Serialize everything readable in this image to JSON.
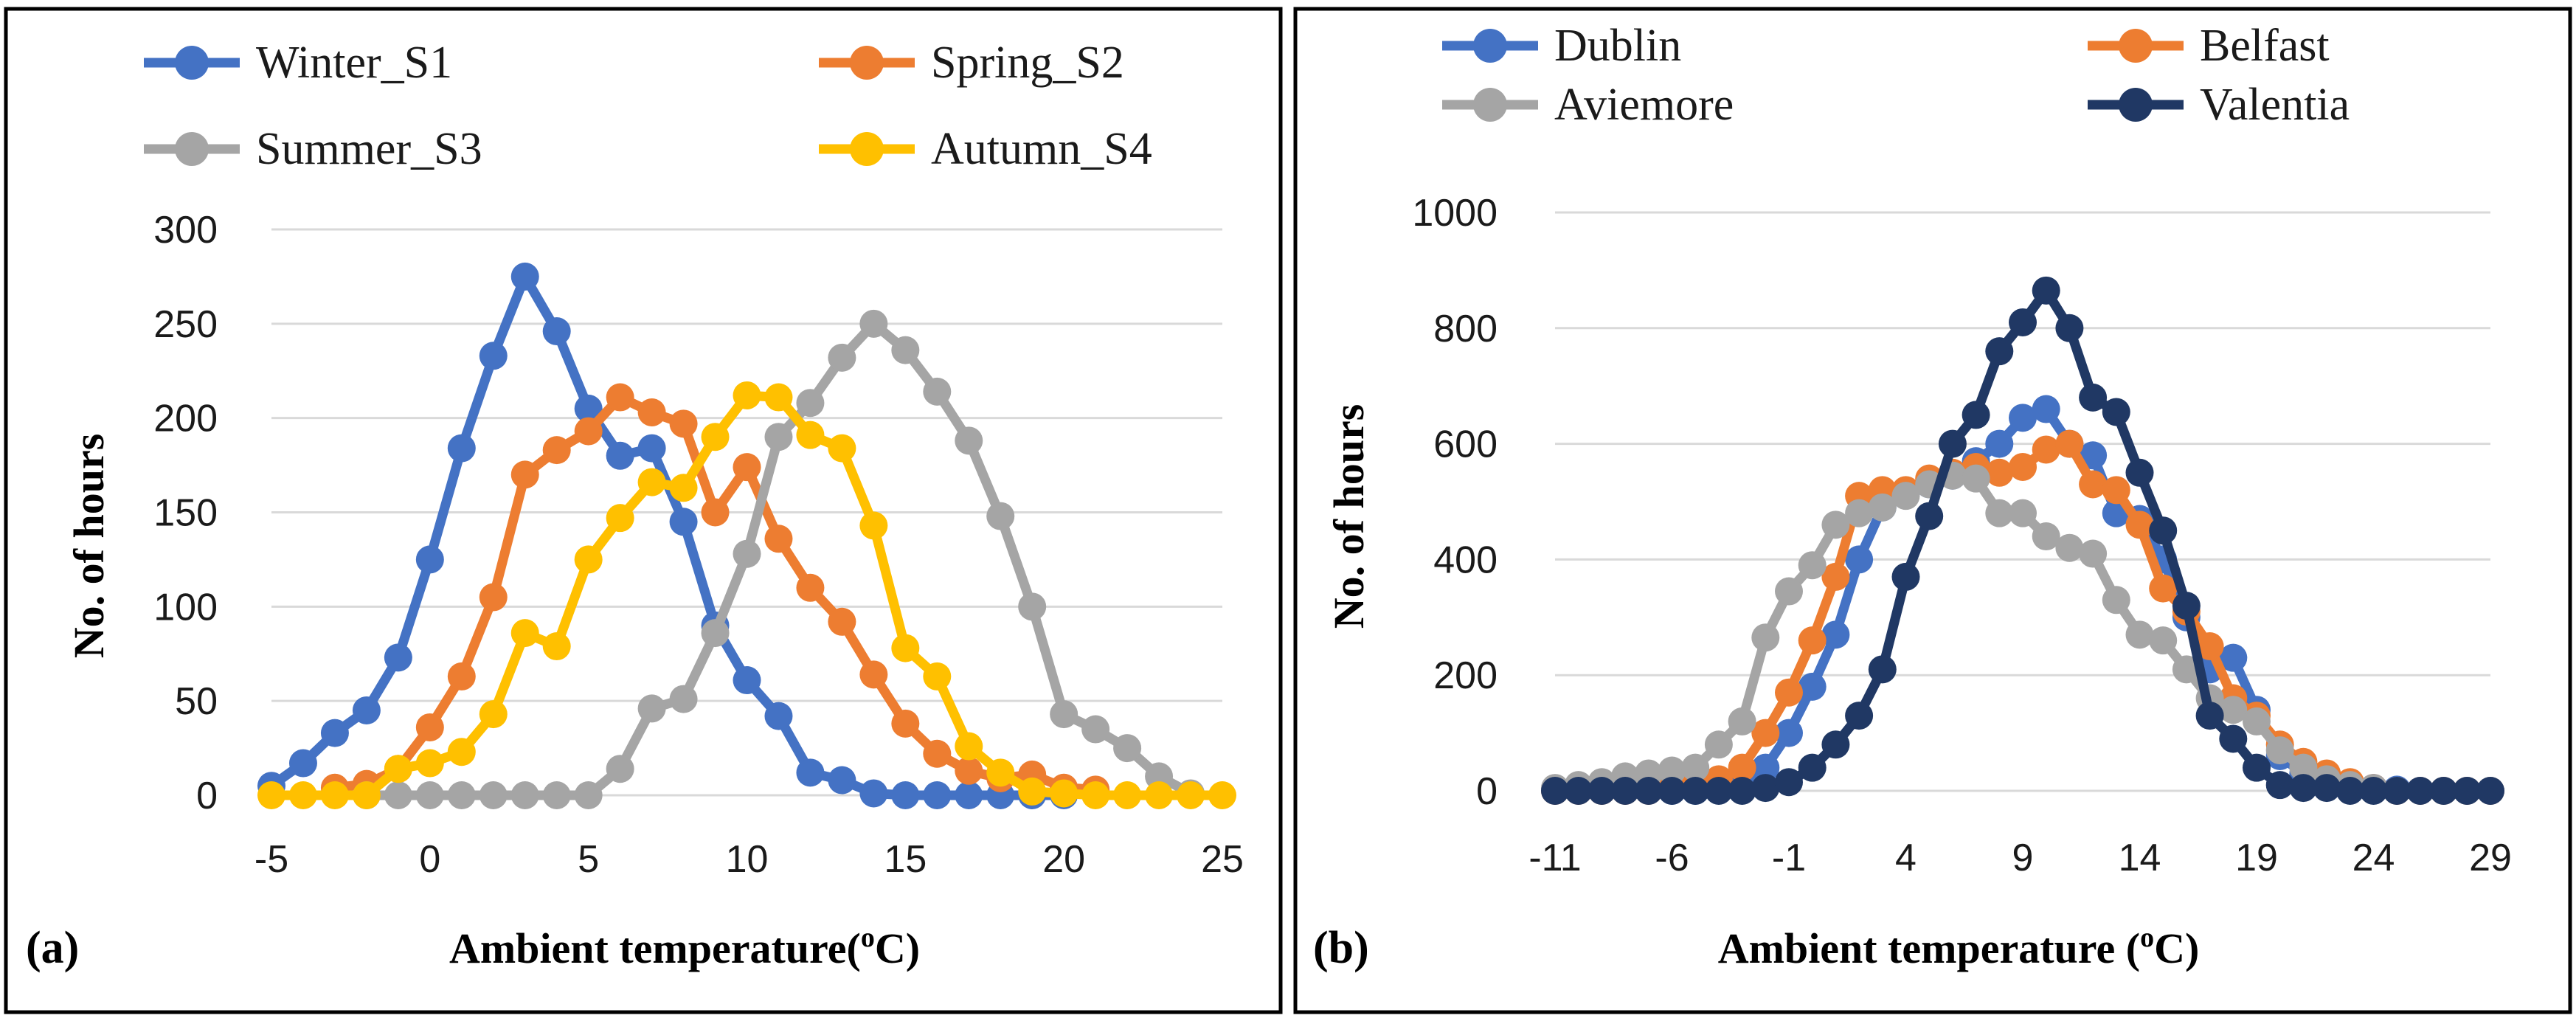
{
  "chart_data": [
    {
      "panel": "(a)",
      "type": "line",
      "xlabel": "Ambient temperature(",
      "xlabel_sup": "o",
      "xlabel_tail": "C)",
      "ylabel": "No. of hours",
      "xlim": [
        -5,
        25
      ],
      "ylim": [
        0,
        300
      ],
      "xticks": [
        -5,
        0,
        5,
        10,
        15,
        20,
        25
      ],
      "yticks": [
        0,
        50,
        100,
        150,
        200,
        250,
        300
      ],
      "legend": [
        "Winter_S1",
        "Spring_S2",
        "Summer_S3",
        "Autumn_S4"
      ],
      "series": [
        {
          "name": "Winter_S1",
          "color": "#4472C4",
          "x": [
            -5,
            -4,
            -3,
            -2,
            -1,
            0,
            1,
            2,
            3,
            4,
            5,
            6,
            7,
            8,
            9,
            10,
            11,
            12,
            13,
            14,
            15,
            16,
            17,
            18,
            19,
            20
          ],
          "values": [
            5,
            17,
            33,
            45,
            73,
            125,
            184,
            233,
            275,
            246,
            205,
            180,
            184,
            145,
            90,
            61,
            42,
            12,
            8,
            1,
            0,
            0,
            0,
            0,
            0,
            0
          ]
        },
        {
          "name": "Spring_S2",
          "color": "#ED7D31",
          "x": [
            -3,
            -2,
            -1,
            0,
            1,
            2,
            3,
            4,
            5,
            6,
            7,
            8,
            9,
            10,
            11,
            12,
            13,
            14,
            15,
            16,
            17,
            18,
            19,
            20,
            21
          ],
          "values": [
            4,
            6,
            14,
            36,
            63,
            105,
            170,
            183,
            193,
            211,
            203,
            197,
            150,
            174,
            136,
            110,
            92,
            64,
            38,
            22,
            13,
            9,
            11,
            4,
            3
          ]
        },
        {
          "name": "Summer_S3",
          "color": "#A5A5A5",
          "x": [
            -2,
            -1,
            0,
            1,
            2,
            3,
            4,
            5,
            6,
            7,
            8,
            9,
            10,
            11,
            12,
            13,
            14,
            15,
            16,
            17,
            18,
            19,
            20,
            21,
            22,
            23,
            24
          ],
          "values": [
            0,
            0,
            0,
            0,
            0,
            0,
            0,
            0,
            14,
            46,
            51,
            86,
            128,
            190,
            208,
            232,
            250,
            236,
            214,
            188,
            148,
            100,
            43,
            35,
            25,
            10,
            1
          ]
        },
        {
          "name": "Autumn_S4",
          "color": "#FFC000",
          "x": [
            -5,
            -4,
            -3,
            -2,
            -1,
            0,
            1,
            2,
            3,
            4,
            5,
            6,
            7,
            8,
            9,
            10,
            11,
            12,
            13,
            14,
            15,
            16,
            17,
            18,
            19,
            20,
            21,
            22,
            23,
            24,
            25
          ],
          "values": [
            0,
            0,
            0,
            0,
            14,
            17,
            23,
            43,
            86,
            79,
            125,
            147,
            166,
            163,
            190,
            212,
            211,
            191,
            184,
            143,
            78,
            63,
            26,
            12,
            2,
            1,
            0,
            0,
            0,
            0,
            0
          ]
        }
      ]
    },
    {
      "panel": "(b)",
      "type": "line",
      "xlabel": "Ambient temperature (",
      "xlabel_sup": "o",
      "xlabel_tail": "C)",
      "ylabel": "No. of hours",
      "xlim": [
        -11,
        29
      ],
      "ylim": [
        0,
        1000
      ],
      "xticks": [
        -11,
        -6,
        -1,
        4,
        9,
        14,
        19,
        24,
        29
      ],
      "yticks": [
        0,
        200,
        400,
        600,
        800,
        1000
      ],
      "legend": [
        "Dublin",
        "Belfast",
        "Aviemore",
        "Valentia"
      ],
      "series": [
        {
          "name": "Dublin",
          "color": "#4472C4",
          "x": [
            -11,
            -10,
            -9,
            -8,
            -7,
            -6,
            -5,
            -4,
            -3,
            -2,
            -1,
            0,
            1,
            2,
            3,
            4,
            5,
            6,
            7,
            8,
            9,
            10,
            11,
            12,
            13,
            14,
            15,
            16,
            17,
            18,
            19,
            20,
            21,
            22,
            23,
            24,
            25,
            26,
            27,
            28,
            29
          ],
          "values": [
            0,
            0,
            0,
            0,
            0,
            0,
            0,
            5,
            15,
            40,
            100,
            180,
            270,
            400,
            490,
            515,
            530,
            545,
            570,
            600,
            645,
            660,
            600,
            580,
            480,
            470,
            400,
            300,
            210,
            230,
            140,
            60,
            30,
            20,
            10,
            5,
            2,
            0,
            0,
            0,
            0
          ]
        },
        {
          "name": "Belfast",
          "color": "#ED7D31",
          "x": [
            -11,
            -10,
            -9,
            -8,
            -7,
            -6,
            -5,
            -4,
            -3,
            -2,
            -1,
            0,
            1,
            2,
            3,
            4,
            5,
            6,
            7,
            8,
            9,
            10,
            11,
            12,
            13,
            14,
            15,
            16,
            17,
            18,
            19,
            20,
            21,
            22,
            23,
            24,
            25,
            26,
            27,
            28,
            29
          ],
          "values": [
            0,
            0,
            0,
            0,
            0,
            5,
            10,
            20,
            40,
            100,
            170,
            260,
            370,
            510,
            520,
            520,
            540,
            550,
            560,
            550,
            560,
            590,
            600,
            530,
            520,
            460,
            350,
            310,
            250,
            160,
            130,
            80,
            50,
            30,
            15,
            5,
            0,
            0,
            0,
            0,
            0
          ]
        },
        {
          "name": "Aviemore",
          "color": "#A5A5A5",
          "x": [
            -11,
            -10,
            -9,
            -8,
            -7,
            -6,
            -5,
            -4,
            -3,
            -2,
            -1,
            0,
            1,
            2,
            3,
            4,
            5,
            6,
            7,
            8,
            9,
            10,
            11,
            12,
            13,
            14,
            15,
            16,
            17,
            18,
            19,
            20,
            21,
            22,
            23,
            24,
            25,
            26,
            27,
            28,
            29
          ],
          "values": [
            5,
            10,
            15,
            25,
            30,
            35,
            40,
            80,
            120,
            265,
            345,
            390,
            460,
            480,
            490,
            510,
            530,
            545,
            540,
            480,
            480,
            440,
            420,
            410,
            330,
            270,
            260,
            210,
            160,
            140,
            120,
            70,
            40,
            20,
            10,
            5,
            0,
            0,
            0,
            0,
            0
          ]
        },
        {
          "name": "Valentia",
          "color": "#203864",
          "x": [
            -11,
            -10,
            -9,
            -8,
            -7,
            -6,
            -5,
            -4,
            -3,
            -2,
            -1,
            0,
            1,
            2,
            3,
            4,
            5,
            6,
            7,
            8,
            9,
            10,
            11,
            12,
            13,
            14,
            15,
            16,
            17,
            18,
            19,
            20,
            21,
            22,
            23,
            24,
            25,
            26,
            27,
            28,
            29
          ],
          "values": [
            0,
            0,
            0,
            0,
            0,
            0,
            0,
            0,
            0,
            5,
            15,
            40,
            80,
            130,
            210,
            370,
            475,
            600,
            650,
            760,
            810,
            865,
            800,
            680,
            655,
            550,
            450,
            320,
            130,
            90,
            40,
            10,
            5,
            5,
            0,
            0,
            0,
            0,
            0,
            0,
            0
          ]
        }
      ]
    }
  ]
}
